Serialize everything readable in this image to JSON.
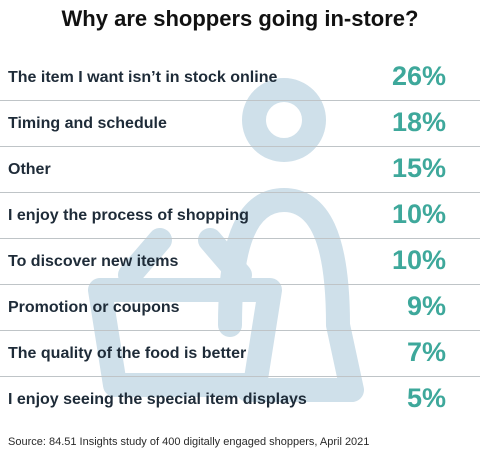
{
  "title": "Why are shoppers going in-store?",
  "source": "Source: 84.51 Insights study of 400 digitally engaged shoppers, April 2021",
  "colors": {
    "value": "#3ea89b",
    "label": "#1e2b38",
    "watermark": "#cfe0ea",
    "divider": "#bfc4c7"
  },
  "watermark_icon": "shopper-with-basket-icon",
  "chart_data": {
    "type": "table",
    "title": "Why are shoppers going in-store?",
    "categories": [
      "The item I want isn’t in stock online",
      "Timing and schedule",
      "Other",
      "I enjoy the process of shopping",
      "To discover new items",
      "Promotion or coupons",
      "The quality of the food is better",
      "I enjoy seeing the special item displays"
    ],
    "values": [
      26,
      18,
      15,
      10,
      10,
      9,
      7,
      5
    ],
    "value_labels": [
      "26%",
      "18%",
      "15%",
      "10%",
      "10%",
      "9%",
      "7%",
      "5%"
    ]
  }
}
